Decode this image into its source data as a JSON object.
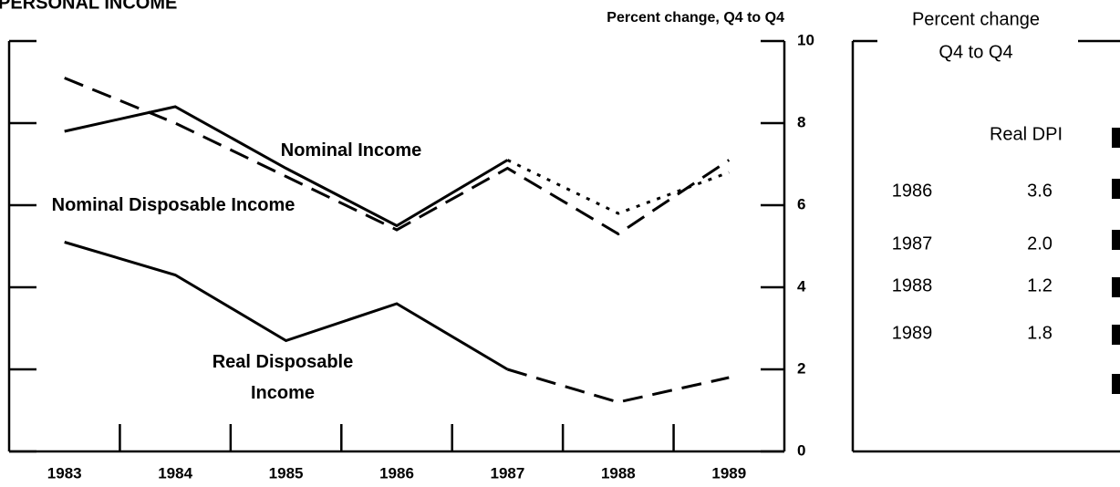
{
  "chart_data": {
    "type": "line",
    "title": "PERSONAL INCOME",
    "ylabel": "Percent change, Q4 to Q4",
    "categories": [
      "1983",
      "1984",
      "1985",
      "1986",
      "1987",
      "1988",
      "1989"
    ],
    "series": [
      {
        "name": "Nominal Income",
        "color": "#000000",
        "style": "solid",
        "projection_style": "dotted",
        "projection_from": "1987",
        "values": [
          7.8,
          8.4,
          6.9,
          5.5,
          7.1,
          5.8,
          6.8
        ]
      },
      {
        "name": "Nominal Disposable Income",
        "color": "#000000",
        "style": "dashed",
        "values": [
          9.1,
          8.0,
          6.7,
          5.4,
          6.9,
          5.3,
          7.1
        ]
      },
      {
        "name": "Real Disposable Income",
        "color": "#000000",
        "style": "solid",
        "projection_style": "dashed",
        "projection_from": "1987",
        "values": [
          5.1,
          4.3,
          2.7,
          3.6,
          2.0,
          1.2,
          1.8
        ]
      }
    ],
    "ylim": [
      0,
      10
    ],
    "yticks": [
      0,
      2,
      4,
      6,
      8,
      10
    ],
    "y_axis_side": "right"
  },
  "table": {
    "title_lines": [
      "Percent change",
      "Q4 to Q4"
    ],
    "columns": [
      "Real DPI"
    ],
    "rows": [
      [
        "1986",
        "3.6"
      ],
      [
        "1987",
        "2.0"
      ],
      [
        "1988",
        "1.2"
      ],
      [
        "1989",
        "1.8"
      ]
    ]
  }
}
